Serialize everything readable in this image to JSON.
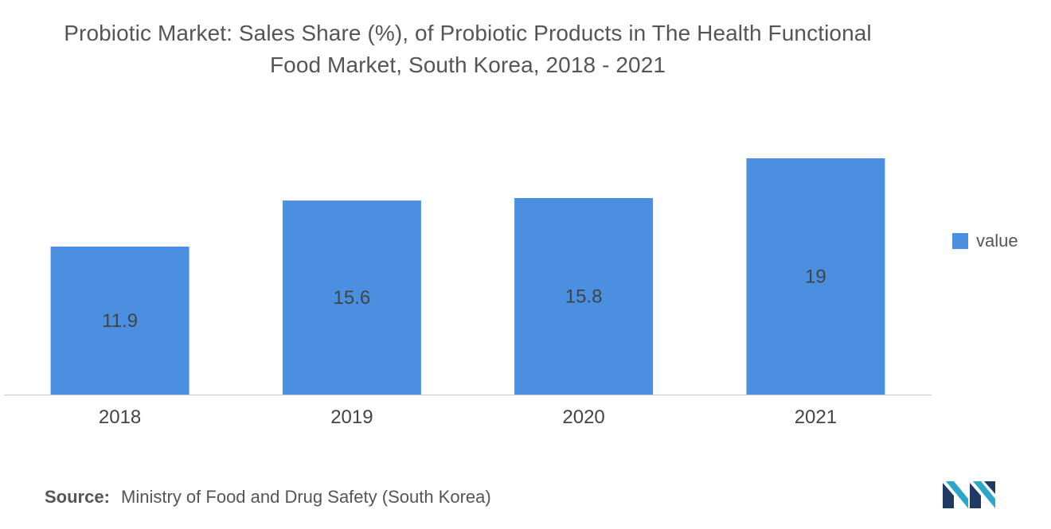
{
  "chart_data": {
    "type": "bar",
    "title": "Probiotic Market: Sales Share (%), of Probiotic Products in The Health Functional Food Market, South Korea, 2018 - 2021",
    "title_lines": [
      "Probiotic Market: Sales Share (%), of Probiotic Products in The Health Functional",
      "Food Market, South Korea, 2018 - 2021"
    ],
    "categories": [
      "2018",
      "2019",
      "2020",
      "2021"
    ],
    "series": [
      {
        "name": "value",
        "values": [
          11.9,
          15.6,
          15.8,
          19
        ],
        "color": "#4a8fe0"
      }
    ],
    "value_labels": [
      "11.9",
      "15.6",
      "15.8",
      "19"
    ],
    "xlabel": "",
    "ylabel": "",
    "ylim": [
      0,
      19
    ],
    "grid": false,
    "legend": {
      "placement": "right",
      "entries": [
        "value"
      ]
    },
    "axis_color": "#c8c8c8",
    "label_color": "#444444"
  },
  "source": {
    "label": "Source:",
    "text": "Ministry of Food and Drug Safety (South Korea)"
  },
  "logo": {
    "icon": "mordor-intelligence-logo-icon",
    "colors": [
      "#1f3b63",
      "#2aa7c9"
    ]
  }
}
